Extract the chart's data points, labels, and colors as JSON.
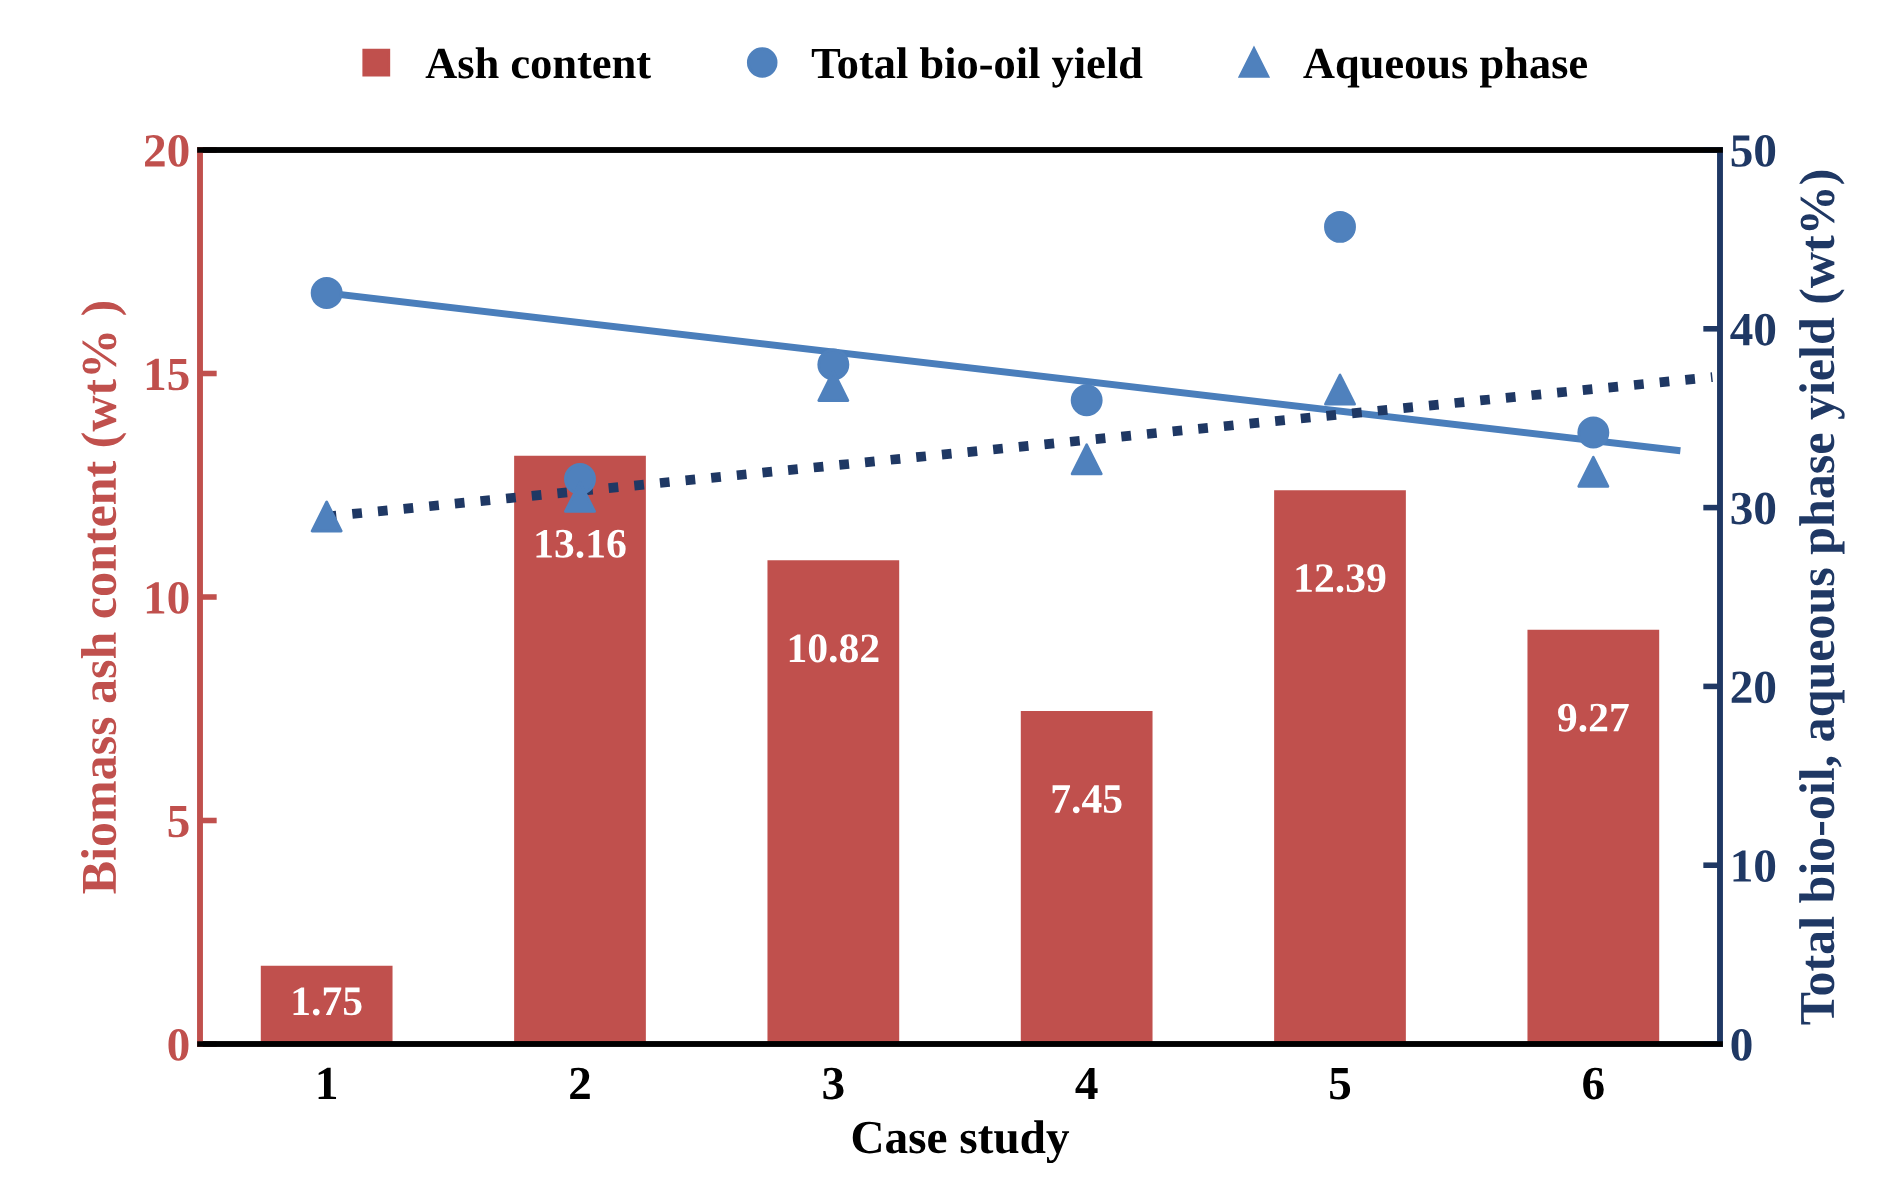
{
  "chart_data": {
    "type": "bar",
    "xlabel": "Case study",
    "ylabel": "Biomass ash content (wt% )",
    "y2label": "Total bio-oil, aqueous phase yield (wt%)",
    "x": [
      1,
      2,
      3,
      4,
      5,
      6
    ],
    "xlim": [
      0.5,
      6.5
    ],
    "xticks": [
      1,
      2,
      3,
      4,
      5,
      6
    ],
    "ylim": [
      0,
      20
    ],
    "yticks": [
      0,
      5,
      10,
      15,
      20
    ],
    "y2lim": [
      0,
      50
    ],
    "y2ticks": [
      0,
      10,
      20,
      30,
      40,
      50
    ],
    "grid": false,
    "legend": "top",
    "series": [
      {
        "name": "Ash content",
        "color": "#c0504d",
        "values": [
          1.75,
          13.16,
          10.82,
          7.45,
          12.39,
          9.27
        ],
        "value_labels": [
          "1.75",
          "13.16",
          "10.82",
          "7.45",
          "12.39",
          "9.27"
        ]
      },
      {
        "name": "Total bio-oil yield",
        "type": "scatter",
        "axis": "y2",
        "marker": "circle",
        "color": "#4f81bd",
        "values": [
          42.0,
          31.6,
          38.0,
          36.0,
          45.7,
          34.2
        ]
      },
      {
        "name": "Aqueous phase",
        "type": "scatter",
        "axis": "y2",
        "marker": "triangle",
        "color": "#4f81bd",
        "values": [
          29.5,
          30.6,
          36.8,
          32.7,
          36.6,
          32.0
        ]
      },
      {
        "type": "line",
        "axis": "y2",
        "line_style": "solid",
        "color": "#4a7ebb",
        "x": [
          1,
          6.33
        ],
        "values": [
          42.0,
          33.2
        ]
      },
      {
        "type": "line",
        "axis": "y2",
        "line_style": "dotted",
        "color": "#1f3864",
        "x": [
          1,
          6.47
        ],
        "values": [
          29.5,
          37.3
        ]
      }
    ]
  }
}
